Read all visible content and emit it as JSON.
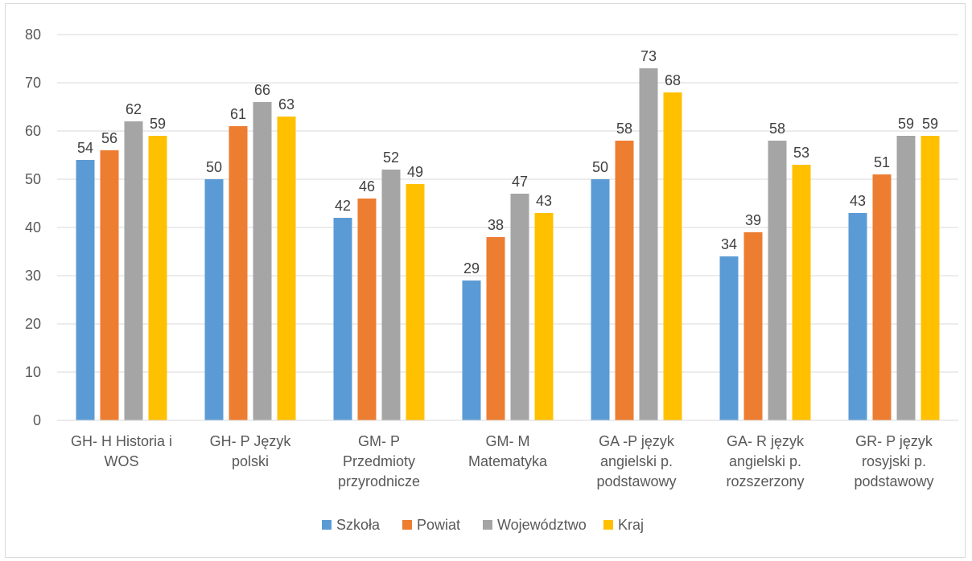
{
  "chart_data": {
    "type": "bar",
    "title": "",
    "xlabel": "",
    "ylabel": "",
    "ylim": [
      0,
      80
    ],
    "yticks": [
      0,
      10,
      20,
      30,
      40,
      50,
      60,
      70,
      80
    ],
    "grid": true,
    "legend_position": "bottom",
    "categories": [
      [
        "GH- H Historia i",
        "WOS"
      ],
      [
        "GH- P Język",
        "polski"
      ],
      [
        "GM- P",
        "Przedmioty",
        "przyrodnicze"
      ],
      [
        "GM- M",
        "Matematyka"
      ],
      [
        "GA -P język",
        "angielski p.",
        "podstawowy"
      ],
      [
        "GA- R język",
        "angielski p.",
        "rozszerzony"
      ],
      [
        "GR- P język",
        "rosyjski p.",
        "podstawowy"
      ]
    ],
    "series": [
      {
        "name": "Szkoła",
        "color": "#5b9bd5",
        "values": [
          54,
          50,
          42,
          29,
          50,
          34,
          43
        ]
      },
      {
        "name": "Powiat",
        "color": "#ed7d31",
        "values": [
          56,
          61,
          46,
          38,
          58,
          39,
          51
        ]
      },
      {
        "name": "Województwo",
        "color": "#a5a5a5",
        "values": [
          62,
          66,
          52,
          47,
          73,
          58,
          59
        ]
      },
      {
        "name": "Kraj",
        "color": "#ffc000",
        "values": [
          59,
          63,
          49,
          43,
          68,
          53,
          59
        ]
      }
    ]
  }
}
